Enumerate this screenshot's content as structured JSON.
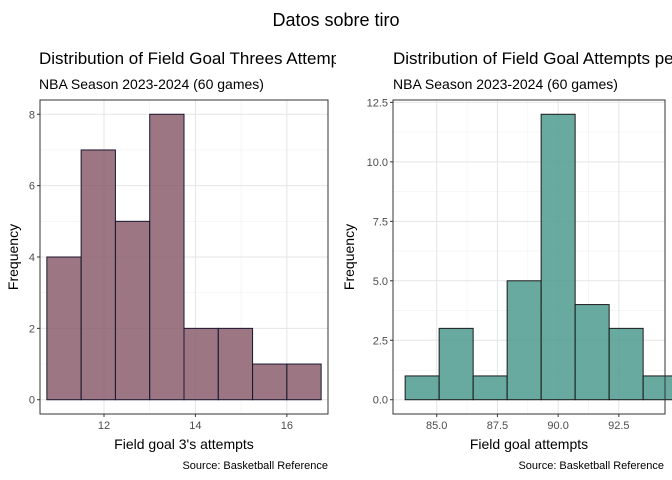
{
  "overall_title": "Datos sobre tiro",
  "chart_data": [
    {
      "type": "bar",
      "title": "Distribution of Field Goal Threes Attempts per Game",
      "subtitle": "NBA Season 2023-2024 (60 games)",
      "caption": "Source: Basketball Reference",
      "xlabel": "Field goal 3's attempts",
      "ylabel": "Frequency",
      "x_ticks": [
        12,
        14,
        16
      ],
      "x_tick_labels": [
        "12",
        "14",
        "16"
      ],
      "y_ticks": [
        0,
        2,
        4,
        6,
        8
      ],
      "y_tick_labels": [
        "0",
        "2",
        "4",
        "6",
        "8"
      ],
      "xlim": [
        10.6,
        16.9
      ],
      "ylim": [
        -0.4,
        8.4
      ],
      "bins": [
        {
          "start": 10.75,
          "end": 11.5,
          "count": 4
        },
        {
          "start": 11.5,
          "end": 12.25,
          "count": 7
        },
        {
          "start": 12.25,
          "end": 13.0,
          "count": 5
        },
        {
          "start": 13.0,
          "end": 13.75,
          "count": 8
        },
        {
          "start": 13.75,
          "end": 14.5,
          "count": 2
        },
        {
          "start": 14.5,
          "end": 15.25,
          "count": 2
        },
        {
          "start": 15.25,
          "end": 16.0,
          "count": 1
        },
        {
          "start": 16.0,
          "end": 16.75,
          "count": 1
        }
      ],
      "fill_color": "#8b5e6d",
      "outline_color": "#1a1630",
      "grid": true,
      "legend": "none"
    },
    {
      "type": "bar",
      "title": "Distribution of Field Goal Attempts per Game",
      "subtitle": "NBA Season 2023-2024 (60 games)",
      "caption": "Source: Basketball Reference",
      "xlabel": "Field goal attempts",
      "ylabel": "Frequency",
      "x_ticks": [
        85,
        87.5,
        90,
        92.5
      ],
      "x_tick_labels": [
        "85.0",
        "87.5",
        "90.0",
        "92.5"
      ],
      "y_ticks": [
        0,
        2.5,
        5,
        7.5,
        10,
        12.5
      ],
      "y_tick_labels": [
        "0.0",
        "2.5",
        "5.0",
        "7.5",
        "10.0",
        "12.5"
      ],
      "xlim": [
        83.2,
        94.4
      ],
      "ylim": [
        -0.6,
        12.6
      ],
      "bins": [
        {
          "start": 83.7,
          "end": 85.1,
          "count": 1
        },
        {
          "start": 85.1,
          "end": 86.5,
          "count": 3
        },
        {
          "start": 86.5,
          "end": 87.9,
          "count": 1
        },
        {
          "start": 87.9,
          "end": 89.3,
          "count": 5
        },
        {
          "start": 89.3,
          "end": 90.7,
          "count": 12
        },
        {
          "start": 90.7,
          "end": 92.1,
          "count": 4
        },
        {
          "start": 92.1,
          "end": 93.5,
          "count": 3
        },
        {
          "start": 93.5,
          "end": 94.9,
          "count": 1
        }
      ],
      "fill_color": "#4f9b8f",
      "outline_color": "#1a1a1a",
      "grid": true,
      "legend": "none"
    }
  ]
}
